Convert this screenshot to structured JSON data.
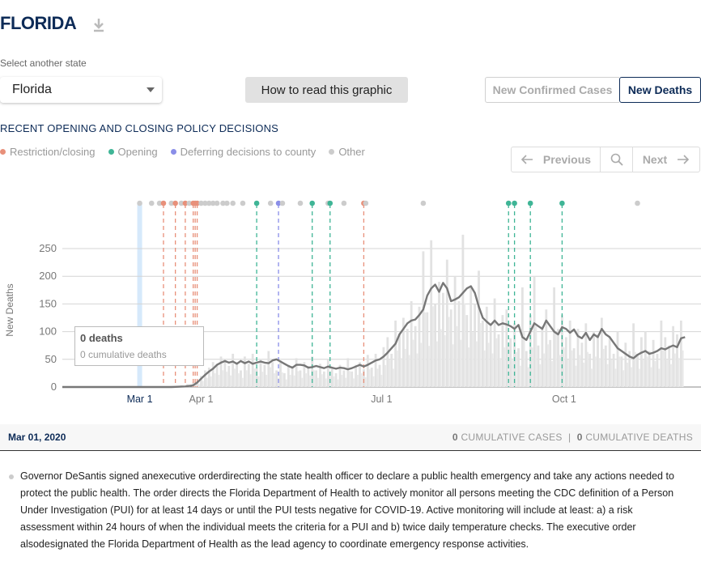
{
  "header": {
    "title": "FLORIDA",
    "download_icon": "download-icon"
  },
  "state_select": {
    "label": "Select another state",
    "value": "Florida"
  },
  "buttons": {
    "how_to_read": "How to read this graphic"
  },
  "metric_toggle": {
    "options": [
      "New Confirmed Cases",
      "New Deaths"
    ],
    "selected": "New Deaths"
  },
  "policy": {
    "heading": "RECENT OPENING AND CLOSING POLICY DECISIONS",
    "legend": [
      {
        "label": "Restriction/closing",
        "color": "#e8907a"
      },
      {
        "label": "Opening",
        "color": "#3fb596"
      },
      {
        "label": "Deferring decisions to county",
        "color": "#8a8ee8"
      },
      {
        "label": "Other",
        "color": "#cccccc"
      }
    ]
  },
  "pager": {
    "previous": "Previous",
    "next": "Next"
  },
  "tooltip": {
    "title": "0 deaths",
    "subtitle": "0 cumulative deaths"
  },
  "info": {
    "date": "Mar 01, 2020",
    "cases_value": "0",
    "cases_label": "CUMULATIVE CASES",
    "sep": "|",
    "deaths_value": "0",
    "deaths_label": "CUMULATIVE DEATHS"
  },
  "description": "Governor DeSantis signed anexecutive orderdirecting the state health officer to declare a public health emergency and take any actions needed to protect the public health. The order directs the Florida Department of Health to actively monitor all persons meeting the CDC definition of a Person Under Investigation (PUI) for at least 14 days or until the PUI tests negative for COVID-19. Active monitoring will include at least: a) a risk assessment within 24 hours of when the individual meets the criteria for a PUI and b) twice daily temperature checks. The executive order alsodesignated the Florida Department of Health as the lead agency to coordinate emergency response activities.",
  "chart_data": {
    "type": "bar",
    "ylabel": "New Deaths",
    "ylim": [
      0,
      250
    ],
    "yticks": [
      0,
      50,
      100,
      150,
      200,
      250
    ],
    "x_start": "2020-01-22",
    "x_ticks": [
      {
        "label": "Mar 1",
        "day": 39,
        "highlight": true
      },
      {
        "label": "Apr 1",
        "day": 70
      },
      {
        "label": "Jul 1",
        "day": 161
      },
      {
        "label": "Oct 1",
        "day": 253
      }
    ],
    "selected_day": 39,
    "policy_events": [
      {
        "day": 39,
        "type": "other"
      },
      {
        "day": 45,
        "type": "other"
      },
      {
        "day": 49,
        "type": "other"
      },
      {
        "day": 51,
        "type": "restriction"
      },
      {
        "day": 55,
        "type": "other"
      },
      {
        "day": 57,
        "type": "restriction"
      },
      {
        "day": 60,
        "type": "other"
      },
      {
        "day": 62,
        "type": "restriction"
      },
      {
        "day": 64,
        "type": "other"
      },
      {
        "day": 66,
        "type": "restriction"
      },
      {
        "day": 67,
        "type": "restriction"
      },
      {
        "day": 68,
        "type": "restriction"
      },
      {
        "day": 70,
        "type": "other"
      },
      {
        "day": 72,
        "type": "other"
      },
      {
        "day": 74,
        "type": "other"
      },
      {
        "day": 76,
        "type": "other"
      },
      {
        "day": 78,
        "type": "other"
      },
      {
        "day": 81,
        "type": "other"
      },
      {
        "day": 83,
        "type": "other"
      },
      {
        "day": 86,
        "type": "other"
      },
      {
        "day": 91,
        "type": "other"
      },
      {
        "day": 98,
        "type": "opening"
      },
      {
        "day": 105,
        "type": "other"
      },
      {
        "day": 109,
        "type": "deferring"
      },
      {
        "day": 111,
        "type": "other"
      },
      {
        "day": 120,
        "type": "other"
      },
      {
        "day": 126,
        "type": "opening"
      },
      {
        "day": 134,
        "type": "other"
      },
      {
        "day": 135,
        "type": "opening"
      },
      {
        "day": 142,
        "type": "other"
      },
      {
        "day": 152,
        "type": "restriction"
      },
      {
        "day": 153,
        "type": "other"
      },
      {
        "day": 182,
        "type": "other"
      },
      {
        "day": 225,
        "type": "opening"
      },
      {
        "day": 228,
        "type": "opening"
      },
      {
        "day": 236,
        "type": "opening"
      },
      {
        "day": 252,
        "type": "opening"
      },
      {
        "day": 290,
        "type": "other"
      }
    ],
    "series": [
      {
        "name": "daily",
        "points": [
          [
            39,
            0
          ],
          [
            45,
            0
          ],
          [
            50,
            1
          ],
          [
            55,
            2
          ],
          [
            60,
            3
          ],
          [
            63,
            5
          ],
          [
            66,
            8
          ],
          [
            68,
            10
          ],
          [
            70,
            20
          ],
          [
            72,
            30
          ],
          [
            74,
            35
          ],
          [
            76,
            45
          ],
          [
            78,
            40
          ],
          [
            80,
            55
          ],
          [
            82,
            50
          ],
          [
            84,
            38
          ],
          [
            86,
            60
          ],
          [
            88,
            45
          ],
          [
            90,
            30
          ],
          [
            92,
            55
          ],
          [
            94,
            42
          ],
          [
            96,
            60
          ],
          [
            98,
            35
          ],
          [
            100,
            50
          ],
          [
            102,
            40
          ],
          [
            104,
            65
          ],
          [
            106,
            45
          ],
          [
            108,
            30
          ],
          [
            110,
            48
          ],
          [
            112,
            25
          ],
          [
            114,
            40
          ],
          [
            116,
            38
          ],
          [
            118,
            52
          ],
          [
            120,
            30
          ],
          [
            122,
            45
          ],
          [
            124,
            38
          ],
          [
            126,
            55
          ],
          [
            128,
            30
          ],
          [
            130,
            42
          ],
          [
            132,
            28
          ],
          [
            134,
            50
          ],
          [
            136,
            35
          ],
          [
            138,
            25
          ],
          [
            140,
            40
          ],
          [
            142,
            30
          ],
          [
            144,
            52
          ],
          [
            146,
            28
          ],
          [
            148,
            40
          ],
          [
            150,
            45
          ],
          [
            152,
            32
          ],
          [
            154,
            58
          ],
          [
            156,
            35
          ],
          [
            158,
            60
          ],
          [
            160,
            40
          ],
          [
            162,
            72
          ],
          [
            164,
            90
          ],
          [
            166,
            60
          ],
          [
            168,
            120
          ],
          [
            170,
            95
          ],
          [
            172,
            125
          ],
          [
            174,
            105
          ],
          [
            176,
            155
          ],
          [
            178,
            110
          ],
          [
            180,
            145
          ],
          [
            182,
            245
          ],
          [
            184,
            135
          ],
          [
            186,
            265
          ],
          [
            188,
            150
          ],
          [
            190,
            190
          ],
          [
            192,
            170
          ],
          [
            194,
            230
          ],
          [
            196,
            140
          ],
          [
            198,
            200
          ],
          [
            200,
            155
          ],
          [
            202,
            275
          ],
          [
            204,
            130
          ],
          [
            206,
            180
          ],
          [
            208,
            150
          ],
          [
            210,
            210
          ],
          [
            212,
            120
          ],
          [
            214,
            145
          ],
          [
            216,
            110
          ],
          [
            218,
            160
          ],
          [
            220,
            95
          ],
          [
            222,
            130
          ],
          [
            224,
            140
          ],
          [
            226,
            88
          ],
          [
            228,
            115
          ],
          [
            230,
            70
          ],
          [
            232,
            180
          ],
          [
            234,
            65
          ],
          [
            236,
            130
          ],
          [
            238,
            200
          ],
          [
            240,
            75
          ],
          [
            242,
            110
          ],
          [
            244,
            140
          ],
          [
            246,
            85
          ],
          [
            248,
            180
          ],
          [
            250,
            105
          ],
          [
            252,
            130
          ],
          [
            254,
            90
          ],
          [
            256,
            120
          ],
          [
            258,
            70
          ],
          [
            260,
            105
          ],
          [
            262,
            80
          ],
          [
            264,
            115
          ],
          [
            266,
            60
          ],
          [
            268,
            100
          ],
          [
            270,
            95
          ],
          [
            272,
            125
          ],
          [
            274,
            75
          ],
          [
            276,
            90
          ],
          [
            278,
            60
          ],
          [
            280,
            100
          ],
          [
            282,
            55
          ],
          [
            284,
            80
          ],
          [
            286,
            65
          ],
          [
            288,
            115
          ],
          [
            290,
            60
          ],
          [
            292,
            90
          ],
          [
            294,
            100
          ],
          [
            296,
            65
          ],
          [
            298,
            85
          ],
          [
            300,
            60
          ],
          [
            302,
            120
          ],
          [
            304,
            90
          ],
          [
            306,
            75
          ],
          [
            308,
            110
          ],
          [
            310,
            95
          ],
          [
            312,
            120
          ]
        ]
      },
      {
        "name": "average",
        "points": [
          [
            0,
            0
          ],
          [
            39,
            0
          ],
          [
            55,
            0
          ],
          [
            62,
            1
          ],
          [
            66,
            3
          ],
          [
            68,
            8
          ],
          [
            70,
            15
          ],
          [
            72,
            22
          ],
          [
            74,
            28
          ],
          [
            76,
            33
          ],
          [
            78,
            40
          ],
          [
            80,
            44
          ],
          [
            82,
            47
          ],
          [
            84,
            44
          ],
          [
            86,
            46
          ],
          [
            88,
            42
          ],
          [
            90,
            47
          ],
          [
            92,
            43
          ],
          [
            94,
            46
          ],
          [
            96,
            42
          ],
          [
            98,
            44
          ],
          [
            100,
            46
          ],
          [
            102,
            44
          ],
          [
            104,
            43
          ],
          [
            106,
            48
          ],
          [
            108,
            50
          ],
          [
            110,
            46
          ],
          [
            112,
            42
          ],
          [
            114,
            38
          ],
          [
            116,
            35
          ],
          [
            118,
            40
          ],
          [
            120,
            40
          ],
          [
            122,
            39
          ],
          [
            124,
            35
          ],
          [
            126,
            36
          ],
          [
            128,
            38
          ],
          [
            130,
            36
          ],
          [
            132,
            34
          ],
          [
            134,
            37
          ],
          [
            136,
            35
          ],
          [
            138,
            33
          ],
          [
            140,
            35
          ],
          [
            142,
            34
          ],
          [
            144,
            32
          ],
          [
            146,
            34
          ],
          [
            148,
            37
          ],
          [
            150,
            40
          ],
          [
            152,
            37
          ],
          [
            154,
            40
          ],
          [
            156,
            44
          ],
          [
            158,
            48
          ],
          [
            160,
            50
          ],
          [
            162,
            55
          ],
          [
            164,
            62
          ],
          [
            166,
            70
          ],
          [
            168,
            78
          ],
          [
            170,
            95
          ],
          [
            172,
            105
          ],
          [
            174,
            115
          ],
          [
            176,
            120
          ],
          [
            178,
            122
          ],
          [
            180,
            130
          ],
          [
            182,
            140
          ],
          [
            184,
            165
          ],
          [
            186,
            178
          ],
          [
            188,
            185
          ],
          [
            190,
            172
          ],
          [
            192,
            188
          ],
          [
            194,
            178
          ],
          [
            196,
            155
          ],
          [
            198,
            158
          ],
          [
            200,
            162
          ],
          [
            202,
            170
          ],
          [
            204,
            178
          ],
          [
            206,
            182
          ],
          [
            208,
            170
          ],
          [
            210,
            145
          ],
          [
            212,
            125
          ],
          [
            214,
            118
          ],
          [
            216,
            112
          ],
          [
            218,
            120
          ],
          [
            220,
            112
          ],
          [
            222,
            115
          ],
          [
            224,
            113
          ],
          [
            226,
            110
          ],
          [
            228,
            105
          ],
          [
            230,
            112
          ],
          [
            232,
            90
          ],
          [
            234,
            85
          ],
          [
            236,
            100
          ],
          [
            238,
            115
          ],
          [
            240,
            110
          ],
          [
            242,
            105
          ],
          [
            244,
            120
          ],
          [
            246,
            110
          ],
          [
            248,
            100
          ],
          [
            250,
            95
          ],
          [
            252,
            108
          ],
          [
            254,
            105
          ],
          [
            256,
            98
          ],
          [
            258,
            104
          ],
          [
            260,
            92
          ],
          [
            262,
            88
          ],
          [
            264,
            98
          ],
          [
            266,
            85
          ],
          [
            268,
            95
          ],
          [
            270,
            90
          ],
          [
            272,
            105
          ],
          [
            274,
            95
          ],
          [
            276,
            90
          ],
          [
            278,
            80
          ],
          [
            280,
            70
          ],
          [
            282,
            65
          ],
          [
            284,
            60
          ],
          [
            286,
            55
          ],
          [
            288,
            52
          ],
          [
            290,
            58
          ],
          [
            292,
            62
          ],
          [
            294,
            65
          ],
          [
            296,
            60
          ],
          [
            298,
            62
          ],
          [
            300,
            65
          ],
          [
            302,
            70
          ],
          [
            304,
            68
          ],
          [
            306,
            72
          ],
          [
            308,
            75
          ],
          [
            310,
            72
          ],
          [
            312,
            88
          ],
          [
            314,
            90
          ]
        ]
      }
    ]
  }
}
